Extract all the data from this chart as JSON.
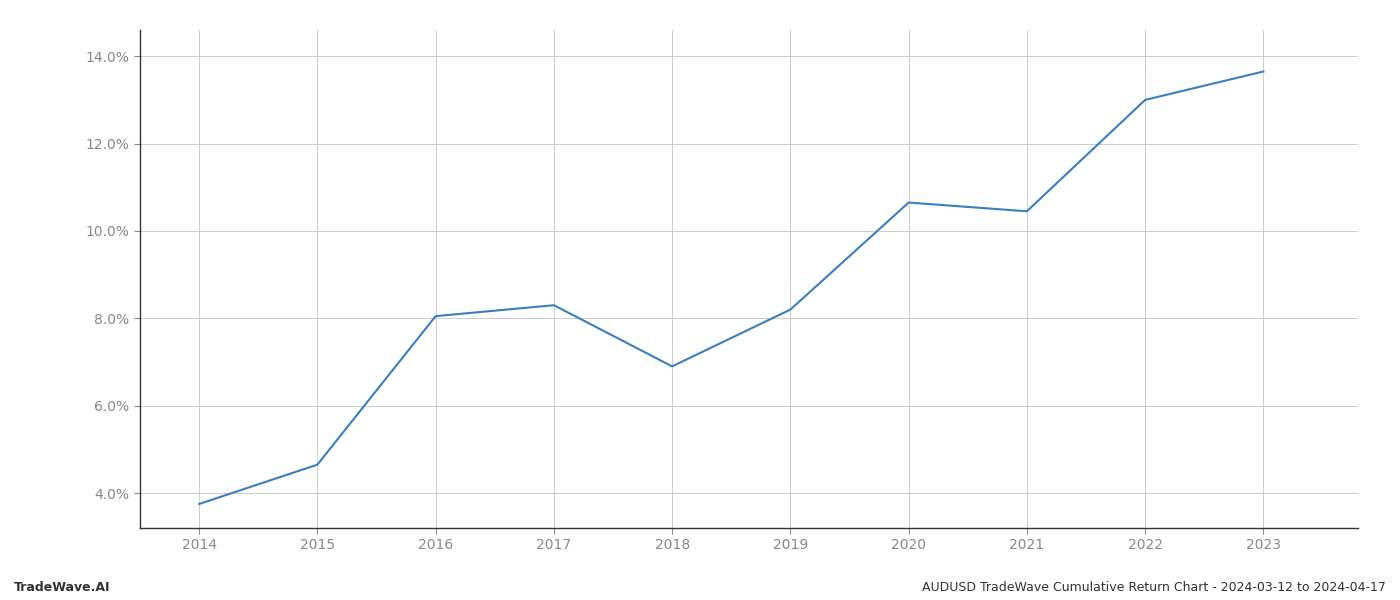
{
  "x_years": [
    2014,
    2015,
    2016,
    2017,
    2018,
    2019,
    2020,
    2021,
    2022,
    2023
  ],
  "y_values": [
    3.75,
    4.65,
    8.05,
    8.3,
    6.9,
    8.2,
    10.65,
    10.45,
    13.0,
    13.65
  ],
  "line_color": "#3a7ebf",
  "line_width": 1.5,
  "background_color": "#ffffff",
  "grid_color": "#cccccc",
  "footer_left": "TradeWave.AI",
  "footer_right": "AUDUSD TradeWave Cumulative Return Chart - 2024-03-12 to 2024-04-17",
  "ylim": [
    3.2,
    14.6
  ],
  "yticks": [
    4.0,
    6.0,
    8.0,
    10.0,
    12.0,
    14.0
  ],
  "xlim": [
    2013.5,
    2023.8
  ],
  "tick_color": "#888888",
  "left_spine_color": "#333333",
  "bottom_spine_color": "#333333",
  "footer_fontsize": 9,
  "axis_fontsize": 10
}
